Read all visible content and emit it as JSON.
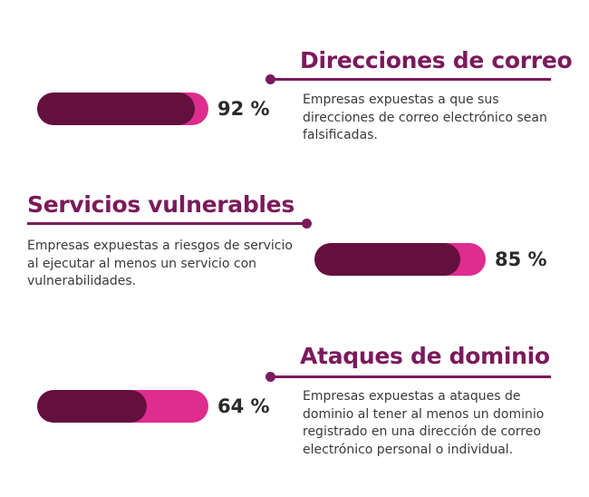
{
  "stats": [
    {
      "title": "Direcciones de correo",
      "percent_label": "92 %",
      "value": 0.92,
      "description": "Empresas expuestas a que sus direcciones de correo electrónico sean falsificadas."
    },
    {
      "title": "Servicios vulnerables",
      "percent_label": "85 %",
      "value": 0.85,
      "description": "Empresas expuestas a riesgos de servicio al ejecutar al menos un servicio con vulnerabilidades."
    },
    {
      "title": "Ataques de dominio",
      "percent_label": "64 %",
      "value": 0.64,
      "description": "Empresas expuestas a ataques de dominio al tener al menos un dominio registrado en una dirección de correo electrónico personal o individual."
    }
  ],
  "colors": {
    "accent": "#7b1a5c",
    "bar_fill": "#64103e",
    "bar_track": "#de2c8f",
    "text": "#3a3a3a"
  }
}
